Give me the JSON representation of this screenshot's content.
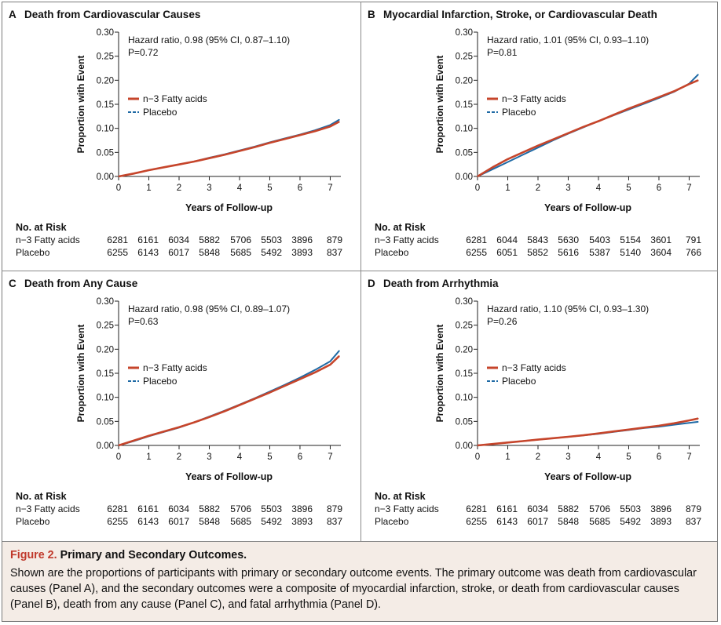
{
  "colors": {
    "treatment": "#c6452b",
    "placebo": "#1f6aa5",
    "axis": "#222222",
    "caption_bg": "#f4ece6",
    "figure_label": "#c0392b"
  },
  "y_axis_label": "Proportion with Event",
  "x_axis_label": "Years of Follow-up",
  "risk_table_title": "No. at Risk",
  "panels": [
    {
      "letter": "A",
      "title": "Death from Cardiovascular Causes",
      "hr_text": "Hazard ratio, 0.98 (95% CI, 0.87–1.10)",
      "p_text": "P=0.72",
      "legend": [
        "n−3 Fatty acids",
        "Placebo"
      ],
      "risk": [
        {
          "group": "n−3 Fatty acids",
          "values": [
            "6281",
            "6161",
            "6034",
            "5882",
            "5706",
            "5503",
            "3896",
            "879"
          ]
        },
        {
          "group": "Placebo",
          "values": [
            "6255",
            "6143",
            "6017",
            "5848",
            "5685",
            "5492",
            "3893",
            "837"
          ]
        }
      ]
    },
    {
      "letter": "B",
      "title": "Myocardial Infarction, Stroke, or Cardiovascular Death",
      "hr_text": "Hazard ratio, 1.01 (95% CI, 0.93–1.10)",
      "p_text": "P=0.81",
      "legend": [
        "n−3 Fatty acids",
        "Placebo"
      ],
      "risk": [
        {
          "group": "n−3 Fatty acids",
          "values": [
            "6281",
            "6044",
            "5843",
            "5630",
            "5403",
            "5154",
            "3601",
            "791"
          ]
        },
        {
          "group": "Placebo",
          "values": [
            "6255",
            "6051",
            "5852",
            "5616",
            "5387",
            "5140",
            "3604",
            "766"
          ]
        }
      ]
    },
    {
      "letter": "C",
      "title": "Death from Any Cause",
      "hr_text": "Hazard ratio, 0.98 (95% CI, 0.89–1.07)",
      "p_text": "P=0.63",
      "legend": [
        "n−3 Fatty acids",
        "Placebo"
      ],
      "risk": [
        {
          "group": "n−3 Fatty acids",
          "values": [
            "6281",
            "6161",
            "6034",
            "5882",
            "5706",
            "5503",
            "3896",
            "879"
          ]
        },
        {
          "group": "Placebo",
          "values": [
            "6255",
            "6143",
            "6017",
            "5848",
            "5685",
            "5492",
            "3893",
            "837"
          ]
        }
      ]
    },
    {
      "letter": "D",
      "title": "Death from Arrhythmia",
      "hr_text": "Hazard ratio, 1.10 (95% CI, 0.93–1.30)",
      "p_text": "P=0.26",
      "legend": [
        "n−3 Fatty acids",
        "Placebo"
      ],
      "risk": [
        {
          "group": "n−3 Fatty acids",
          "values": [
            "6281",
            "6161",
            "6034",
            "5882",
            "5706",
            "5503",
            "3896",
            "879"
          ]
        },
        {
          "group": "Placebo",
          "values": [
            "6255",
            "6143",
            "6017",
            "5848",
            "5685",
            "5492",
            "3893",
            "837"
          ]
        }
      ]
    }
  ],
  "caption": {
    "label": "Figure 2.",
    "title": "Primary and Secondary Outcomes.",
    "text": "Shown are the proportions of participants with primary or secondary outcome events. The primary outcome was death from cardiovascular causes (Panel A), and the secondary outcomes were a composite of myocardial infarction, stroke, or death from cardiovascular causes (Panel B), death from any cause (Panel C), and fatal arrhythmia (Panel D)."
  },
  "chart_data": [
    {
      "type": "line",
      "title": "Death from Cardiovascular Causes",
      "xlabel": "Years of Follow-up",
      "ylabel": "Proportion with Event",
      "xlim": [
        0,
        7.3
      ],
      "ylim": [
        0,
        0.3
      ],
      "xticks": [
        "0",
        "1",
        "2",
        "3",
        "4",
        "5",
        "6",
        "7"
      ],
      "yticks": [
        "0.00",
        "0.05",
        "0.10",
        "0.15",
        "0.20",
        "0.25",
        "0.30"
      ],
      "grid": false,
      "legend": "middle-left",
      "series": [
        {
          "name": "n−3 Fatty acids",
          "x": [
            0,
            0.5,
            1,
            1.5,
            2,
            2.5,
            3,
            3.5,
            4,
            4.5,
            5,
            5.5,
            6,
            6.5,
            7,
            7.3
          ],
          "y": [
            0,
            0.006,
            0.013,
            0.019,
            0.025,
            0.031,
            0.038,
            0.045,
            0.053,
            0.061,
            0.07,
            0.078,
            0.086,
            0.094,
            0.104,
            0.114
          ]
        },
        {
          "name": "Placebo",
          "x": [
            0,
            0.5,
            1,
            1.5,
            2,
            2.5,
            3,
            3.5,
            4,
            4.5,
            5,
            5.5,
            6,
            6.5,
            7,
            7.3
          ],
          "y": [
            0,
            0.006,
            0.013,
            0.019,
            0.025,
            0.031,
            0.039,
            0.046,
            0.054,
            0.062,
            0.071,
            0.079,
            0.087,
            0.096,
            0.107,
            0.118
          ]
        }
      ]
    },
    {
      "type": "line",
      "title": "Myocardial Infarction, Stroke, or Cardiovascular Death",
      "xlabel": "Years of Follow-up",
      "ylabel": "Proportion with Event",
      "xlim": [
        0,
        7.3
      ],
      "ylim": [
        0,
        0.3
      ],
      "xticks": [
        "0",
        "1",
        "2",
        "3",
        "4",
        "5",
        "6",
        "7"
      ],
      "yticks": [
        "0.00",
        "0.05",
        "0.10",
        "0.15",
        "0.20",
        "0.25",
        "0.30"
      ],
      "grid": false,
      "legend": "middle-left",
      "series": [
        {
          "name": "n−3 Fatty acids",
          "x": [
            0,
            0.5,
            1,
            1.5,
            2,
            2.5,
            3,
            3.5,
            4,
            4.5,
            5,
            5.5,
            6,
            6.5,
            7,
            7.3
          ],
          "y": [
            0,
            0.019,
            0.036,
            0.05,
            0.064,
            0.077,
            0.09,
            0.103,
            0.115,
            0.128,
            0.141,
            0.153,
            0.165,
            0.177,
            0.192,
            0.2
          ]
        },
        {
          "name": "Placebo",
          "x": [
            0,
            0.5,
            1,
            1.5,
            2,
            2.5,
            3,
            3.5,
            4,
            4.5,
            5,
            5.5,
            6,
            6.5,
            7,
            7.3
          ],
          "y": [
            0,
            0.015,
            0.03,
            0.045,
            0.06,
            0.075,
            0.089,
            0.102,
            0.115,
            0.127,
            0.139,
            0.151,
            0.163,
            0.176,
            0.193,
            0.212
          ]
        }
      ]
    },
    {
      "type": "line",
      "title": "Death from Any Cause",
      "xlabel": "Years of Follow-up",
      "ylabel": "Proportion with Event",
      "xlim": [
        0,
        7.3
      ],
      "ylim": [
        0,
        0.3
      ],
      "xticks": [
        "0",
        "1",
        "2",
        "3",
        "4",
        "5",
        "6",
        "7"
      ],
      "yticks": [
        "0.00",
        "0.05",
        "0.10",
        "0.15",
        "0.20",
        "0.25",
        "0.30"
      ],
      "grid": false,
      "legend": "middle-left",
      "series": [
        {
          "name": "n−3 Fatty acids",
          "x": [
            0,
            0.5,
            1,
            1.5,
            2,
            2.5,
            3,
            3.5,
            4,
            4.5,
            5,
            5.5,
            6,
            6.5,
            7,
            7.3
          ],
          "y": [
            0,
            0.01,
            0.02,
            0.029,
            0.038,
            0.048,
            0.059,
            0.071,
            0.084,
            0.097,
            0.11,
            0.124,
            0.138,
            0.152,
            0.168,
            0.186
          ]
        },
        {
          "name": "Placebo",
          "x": [
            0,
            0.5,
            1,
            1.5,
            2,
            2.5,
            3,
            3.5,
            4,
            4.5,
            5,
            5.5,
            6,
            6.5,
            7,
            7.3
          ],
          "y": [
            0,
            0.009,
            0.019,
            0.028,
            0.037,
            0.048,
            0.06,
            0.072,
            0.085,
            0.098,
            0.112,
            0.126,
            0.141,
            0.157,
            0.175,
            0.197
          ]
        }
      ]
    },
    {
      "type": "line",
      "title": "Death from Arrhythmia",
      "xlabel": "Years of Follow-up",
      "ylabel": "Proportion with Event",
      "xlim": [
        0,
        7.3
      ],
      "ylim": [
        0,
        0.3
      ],
      "xticks": [
        "0",
        "1",
        "2",
        "3",
        "4",
        "5",
        "6",
        "7"
      ],
      "yticks": [
        "0.00",
        "0.05",
        "0.10",
        "0.15",
        "0.20",
        "0.25",
        "0.30"
      ],
      "grid": false,
      "legend": "middle-left",
      "series": [
        {
          "name": "n−3 Fatty acids",
          "x": [
            0,
            0.5,
            1,
            1.5,
            2,
            2.5,
            3,
            3.5,
            4,
            4.5,
            5,
            5.5,
            6,
            6.5,
            7,
            7.3
          ],
          "y": [
            0,
            0.003,
            0.006,
            0.009,
            0.012,
            0.015,
            0.018,
            0.021,
            0.025,
            0.029,
            0.033,
            0.037,
            0.041,
            0.046,
            0.052,
            0.056
          ]
        },
        {
          "name": "Placebo",
          "x": [
            0,
            0.5,
            1,
            1.5,
            2,
            2.5,
            3,
            3.5,
            4,
            4.5,
            5,
            5.5,
            6,
            6.5,
            7,
            7.3
          ],
          "y": [
            0,
            0.003,
            0.006,
            0.009,
            0.012,
            0.015,
            0.018,
            0.021,
            0.024,
            0.028,
            0.032,
            0.036,
            0.039,
            0.043,
            0.047,
            0.049
          ]
        }
      ]
    }
  ]
}
